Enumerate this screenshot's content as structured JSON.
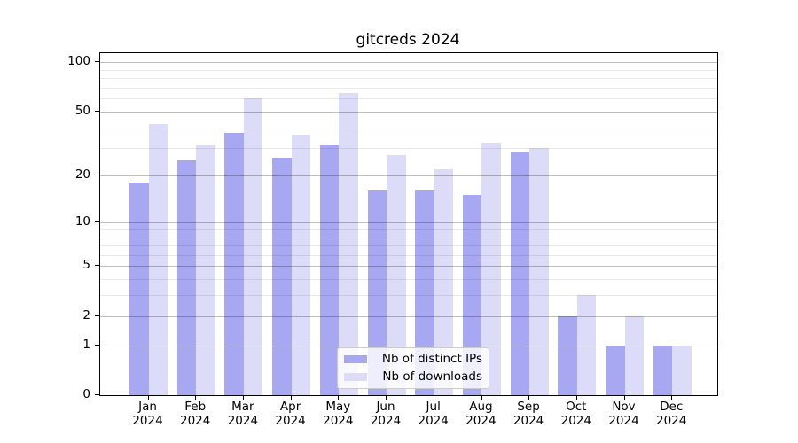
{
  "title": "gitcreds 2024",
  "chart_data": {
    "type": "bar",
    "title": "gitcreds 2024",
    "categories": [
      "Jan",
      "Feb",
      "Mar",
      "Apr",
      "May",
      "Jun",
      "Jul",
      "Aug",
      "Sep",
      "Oct",
      "Nov",
      "Dec"
    ],
    "category_year_line": "2024",
    "series": [
      {
        "name": "Nb of distinct IPs",
        "color": "#a8a8f2",
        "values": [
          18,
          25,
          37,
          26,
          31,
          16,
          16,
          15,
          28,
          2,
          1,
          1
        ]
      },
      {
        "name": "Nb of downloads",
        "color": "#dcdcf9",
        "values": [
          42,
          31,
          60,
          36,
          65,
          27,
          22,
          32,
          30,
          3,
          2,
          1
        ]
      }
    ],
    "xlabel": "",
    "ylabel": "",
    "y_scale": "log1p",
    "y_ticks": [
      0,
      1,
      2,
      5,
      10,
      20,
      50,
      100
    ],
    "y_minor_gridlines": [
      3,
      4,
      6,
      7,
      8,
      9,
      30,
      40,
      60,
      70,
      80,
      90
    ],
    "ylim": [
      0,
      114
    ],
    "grid": true,
    "legend_position": "bottom-center",
    "colors": {
      "major_gridline": "rgba(0,0,0,0.25)",
      "minor_gridline": "rgba(0,0,0,0.09)",
      "spine": "#000000",
      "background": "#ffffff"
    }
  },
  "legend": {
    "items": [
      {
        "label": "Nb of distinct IPs",
        "color": "#a8a8f2"
      },
      {
        "label": "Nb of downloads",
        "color": "#dcdcf9"
      }
    ]
  }
}
